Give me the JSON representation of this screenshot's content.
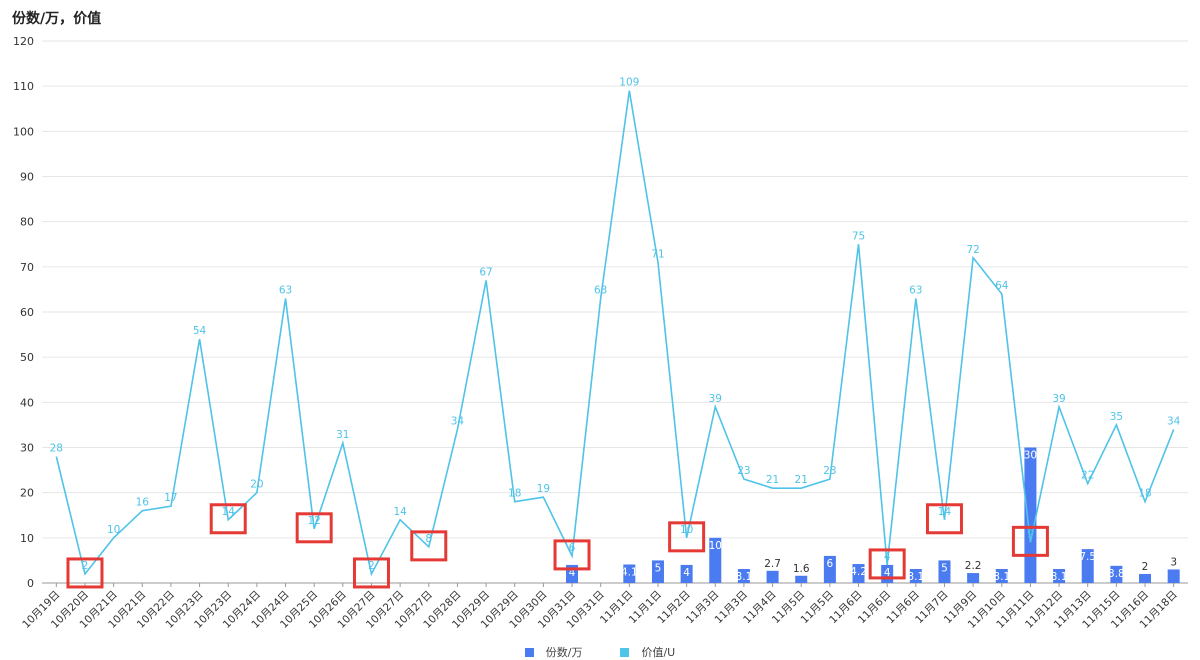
{
  "title": "份数/万，价值",
  "chart_data": {
    "type": "bar+line",
    "ylim": [
      0,
      120
    ],
    "yticks": [
      0,
      10,
      20,
      30,
      40,
      50,
      60,
      70,
      80,
      90,
      100,
      110,
      120
    ],
    "grid": true,
    "legend_position": "bottom",
    "categories": [
      "10月19日",
      "10月20日",
      "10月21日",
      "10月21日",
      "10月22日",
      "10月23日",
      "10月23日",
      "10月24日",
      "10月24日",
      "10月25日",
      "10月26日",
      "10月27日",
      "10月27日",
      "10月27日",
      "10月28日",
      "10月29日",
      "10月29日",
      "10月30日",
      "10月31日",
      "10月31日",
      "11月1日",
      "11月1日",
      "11月2日",
      "11月3日",
      "11月3日",
      "11月4日",
      "11月5日",
      "11月5日",
      "11月6日",
      "11月6日",
      "11月6日",
      "11月7日",
      "11月9日",
      "11月10日",
      "11月11日",
      "11月12日",
      "11月13日",
      "11月15日",
      "11月16日",
      "11月18日"
    ],
    "series": [
      {
        "name": "份数/万",
        "type": "bar",
        "color": "#4a7bf0",
        "values": [
          null,
          null,
          null,
          null,
          null,
          null,
          null,
          null,
          null,
          null,
          null,
          null,
          null,
          null,
          null,
          null,
          null,
          null,
          4,
          null,
          4.1,
          5,
          4,
          10,
          3.1,
          2.7,
          1.6,
          6,
          4.2,
          4,
          3.1,
          5,
          2.2,
          3.1,
          30,
          3.1,
          7.5,
          3.8,
          2,
          3
        ]
      },
      {
        "name": "价值/U",
        "type": "line",
        "color": "#4fc3e8",
        "values": [
          28,
          2,
          10,
          16,
          17,
          54,
          14,
          20,
          63,
          12,
          31,
          2,
          14,
          8,
          34,
          67,
          18,
          19,
          6,
          63,
          109,
          71,
          10,
          39,
          23,
          21,
          21,
          23,
          75,
          4,
          63,
          14,
          72,
          64,
          9,
          39,
          22,
          35,
          18,
          34
        ]
      }
    ],
    "highlight_boxes_on_indices": [
      1,
      6,
      9,
      11,
      13,
      18,
      22,
      29,
      31,
      34
    ],
    "highlight_color": "#e53935"
  }
}
